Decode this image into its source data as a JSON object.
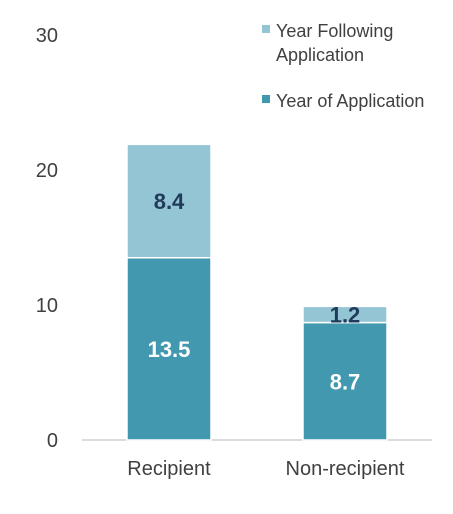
{
  "chart_data": {
    "type": "bar",
    "stacked": true,
    "categories": [
      "Recipient",
      "Non-recipient"
    ],
    "series": [
      {
        "name": "Year of Application",
        "values": [
          13.5,
          8.7
        ],
        "color": "#4298AE",
        "label_color": "#FFFFFF"
      },
      {
        "name": "Year Following Application",
        "values": [
          8.4,
          1.2
        ],
        "color": "#93C5D5",
        "label_color": "#1F3A5A"
      }
    ],
    "yticks": [
      "0",
      "10",
      "20",
      "30"
    ],
    "ylim": [
      0,
      30
    ],
    "grid": false,
    "legend_position": "top-right",
    "legend": {
      "following_line1": "Year Following",
      "following_line2": "Application",
      "application": "Year of Application"
    }
  }
}
